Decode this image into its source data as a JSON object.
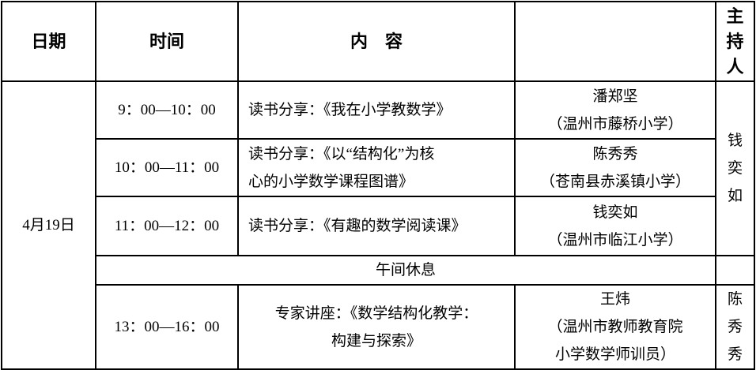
{
  "headers": {
    "date": "日期",
    "time": "时间",
    "content": "内　容",
    "host": [
      "主",
      "持",
      "人"
    ]
  },
  "date": "4月19日",
  "sessions": [
    {
      "time": "9：00—10：00",
      "content": [
        "读书分享：《我在小学教数学》"
      ],
      "speaker": [
        "潘郑坚",
        "（温州市藤桥小学）"
      ]
    },
    {
      "time": "10：00—11：00",
      "content": [
        "读书分享：《以“结构化”为核",
        "心的小学数学课程图谱》"
      ],
      "speaker": [
        "陈秀秀",
        "（苍南县赤溪镇小学）"
      ]
    },
    {
      "time": "11：00—12：00",
      "content": [
        "读书分享：《有趣的数学阅读课》"
      ],
      "speaker": [
        "钱奕如",
        "（温州市临江小学）"
      ]
    },
    {
      "time": "13：00—16：00",
      "content": [
        "专家讲座：《数学结构化教学：",
        "构建与探索》"
      ],
      "speaker": [
        "王炜",
        "（温州市教师教育院",
        "小学数学师训员）"
      ]
    }
  ],
  "break": "午间休息",
  "hosts": [
    [
      "钱",
      "奕",
      "如"
    ],
    [
      "陈",
      "秀",
      "秀"
    ]
  ]
}
